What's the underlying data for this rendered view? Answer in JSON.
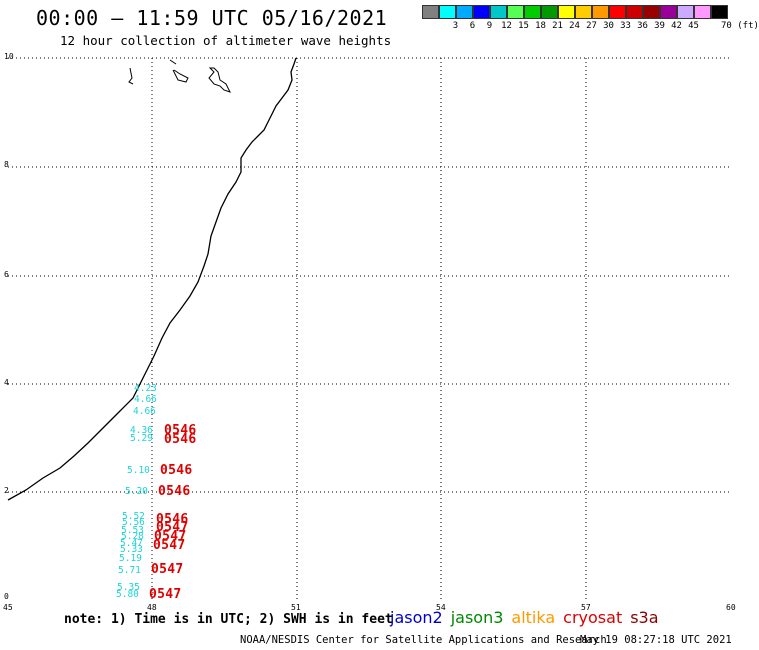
{
  "header": {
    "title": "00:00 – 11:59 UTC 05/16/2021",
    "subtitle": "12 hour collection of altimeter wave heights"
  },
  "color_scale": {
    "unit": "70 (ft)",
    "items": [
      {
        "label": "",
        "color": "#808080"
      },
      {
        "label": "3",
        "color": "#00ffff"
      },
      {
        "label": "6",
        "color": "#00aaff"
      },
      {
        "label": "9",
        "color": "#0000ff"
      },
      {
        "label": "12",
        "color": "#00c8c8"
      },
      {
        "label": "15",
        "color": "#55ff55"
      },
      {
        "label": "18",
        "color": "#00cc00"
      },
      {
        "label": "21",
        "color": "#009900"
      },
      {
        "label": "24",
        "color": "#ffff00"
      },
      {
        "label": "27",
        "color": "#ffcc00"
      },
      {
        "label": "30",
        "color": "#ff9900"
      },
      {
        "label": "33",
        "color": "#ff0000"
      },
      {
        "label": "36",
        "color": "#cc0000"
      },
      {
        "label": "39",
        "color": "#990000"
      },
      {
        "label": "42",
        "color": "#990099"
      },
      {
        "label": "45",
        "color": "#ccaaff"
      },
      {
        "label": "",
        "color": "#ff99ff"
      },
      {
        "label": "",
        "color": "#000000"
      }
    ]
  },
  "axes": {
    "y_ticks": [
      "10",
      "8",
      "6",
      "4",
      "2",
      "0"
    ],
    "x_ticks": [
      "45",
      "48",
      "51",
      "54",
      "57",
      "60"
    ]
  },
  "swh_labels": [
    "4.23",
    "4.66",
    "4.66",
    "4.36",
    "5.29",
    "5.10",
    "5.20",
    "5.52",
    "5.56",
    "5.53",
    "5.28",
    "5.47",
    "5.33",
    "5.19",
    "5.71",
    "5.35",
    "5.80"
  ],
  "time_labels": [
    "0546",
    "0546",
    "0546",
    "0546",
    "0546",
    "0547",
    "0547",
    "0547",
    "0547",
    "0547"
  ],
  "note": "note: 1) Time is in UTC; 2) SWH is in feet",
  "satellites": [
    {
      "name": "jason2",
      "color": "#0000cc"
    },
    {
      "name": "jason3",
      "color": "#008800"
    },
    {
      "name": "altika",
      "color": "#ff9900"
    },
    {
      "name": "cryosat",
      "color": "#dd0000"
    },
    {
      "name": "s3a",
      "color": "#880000"
    }
  ],
  "footer": {
    "source": "NOAA/NESDIS Center for Satellite Applications and Research",
    "timestamp": "May 19 08:27:18 UTC 2021"
  }
}
